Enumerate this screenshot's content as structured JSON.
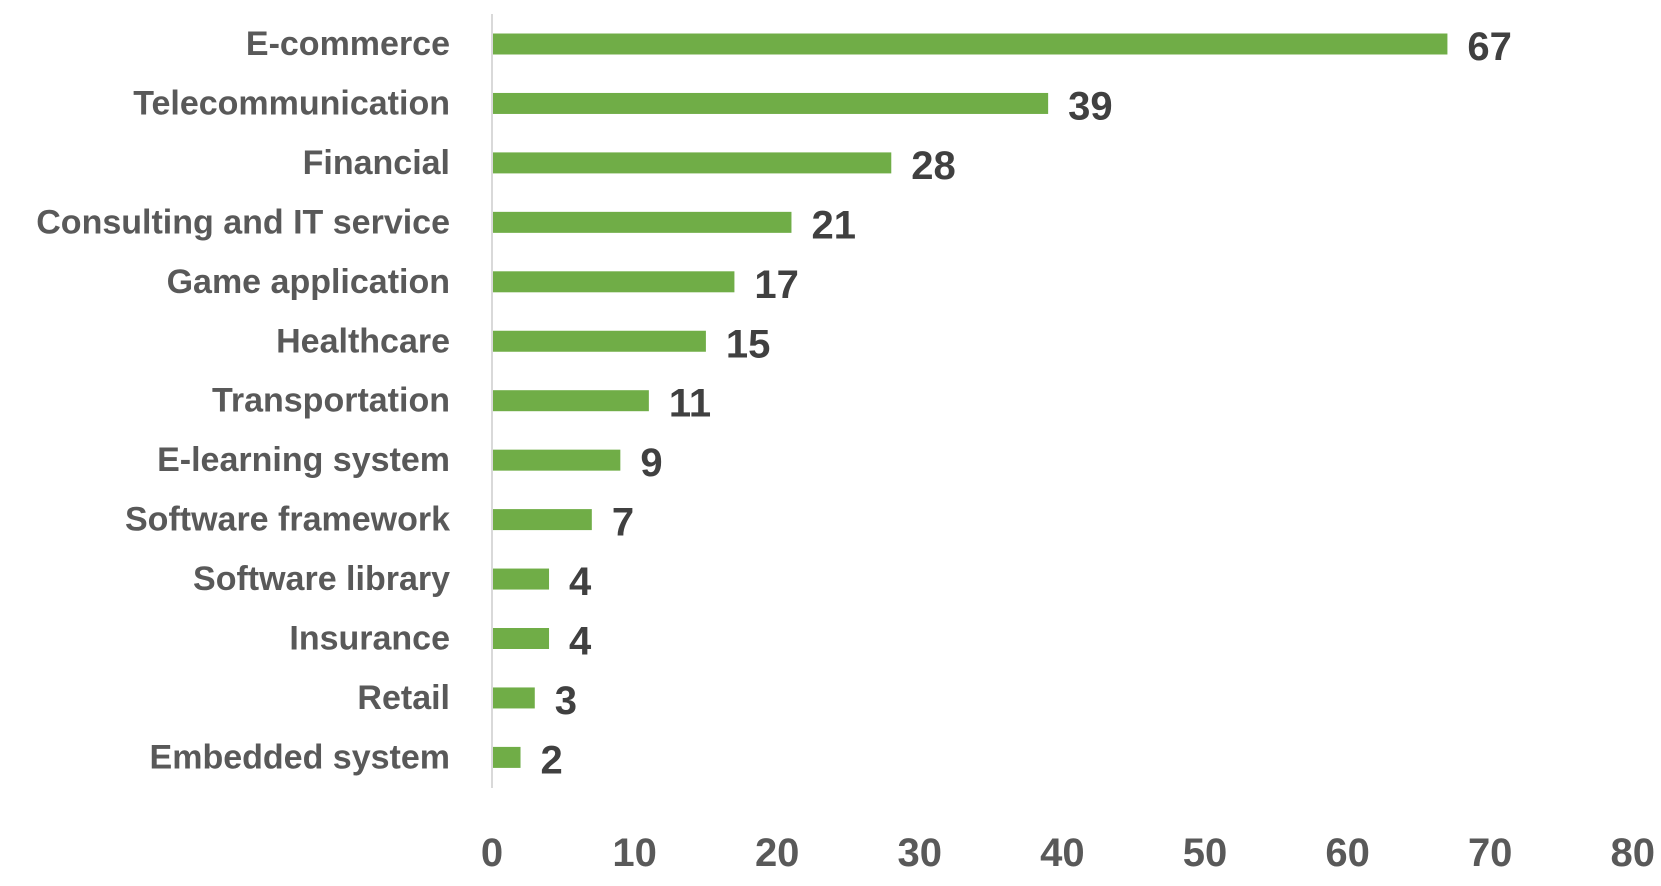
{
  "chart_data": {
    "type": "bar",
    "orientation": "horizontal",
    "categories": [
      "E-commerce",
      "Telecommunication",
      "Financial",
      "Consulting and IT service",
      "Game application",
      "Healthcare",
      "Transportation",
      "E-learning system",
      "Software framework",
      "Software library",
      "Insurance",
      "Retail",
      "Embedded system"
    ],
    "values": [
      67,
      39,
      28,
      21,
      17,
      15,
      11,
      9,
      7,
      4,
      4,
      3,
      2
    ],
    "xlim": [
      0,
      80
    ],
    "x_ticks": [
      0,
      10,
      20,
      30,
      40,
      50,
      60,
      70,
      80
    ],
    "bar_color": "#70AD47",
    "axis_color": "#D9D9D9",
    "grid": false,
    "legend": "none",
    "data_labels": true
  }
}
